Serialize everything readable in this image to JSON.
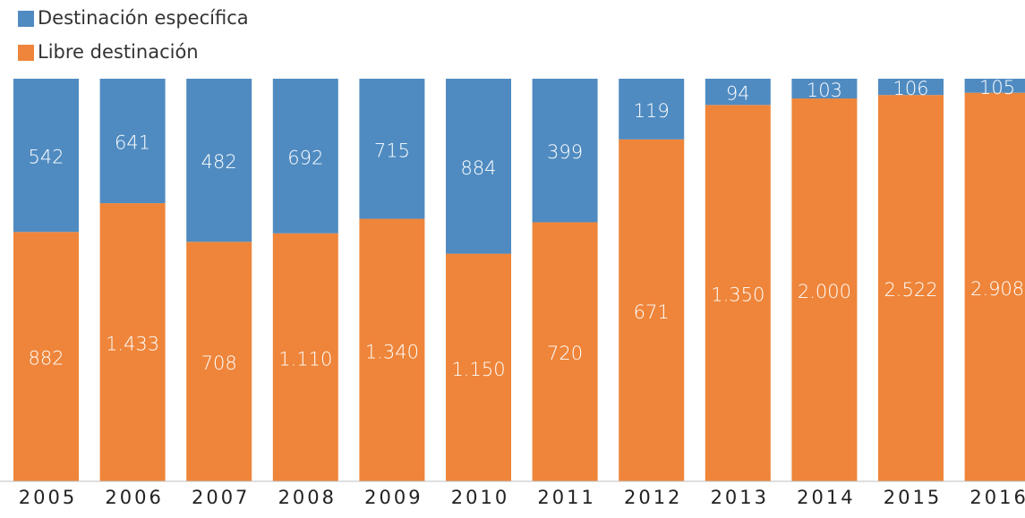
{
  "chart_data": {
    "type": "bar",
    "stacking": "percent",
    "categories": [
      "2005",
      "2006",
      "2007",
      "2008",
      "2009",
      "2010",
      "2011",
      "2012",
      "2013",
      "2014",
      "2015",
      "2016"
    ],
    "series": [
      {
        "name": "Libre destinación",
        "color": "#ee853a",
        "values": [
          882,
          1433,
          708,
          1110,
          1340,
          1150,
          720,
          671,
          1350,
          2000,
          2522,
          2908
        ],
        "value_labels": [
          "882",
          "1.433",
          "708",
          "1.110",
          "1.340",
          "1.150",
          "720",
          "671",
          "1.350",
          "2.000",
          "2.522",
          "2.908"
        ]
      },
      {
        "name": "Destinación específica",
        "color": "#4f8bc1",
        "values": [
          542,
          641,
          482,
          692,
          715,
          884,
          399,
          119,
          94,
          103,
          106,
          105
        ]
      }
    ],
    "legend": "top-left"
  }
}
